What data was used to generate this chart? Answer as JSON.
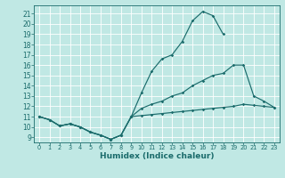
{
  "xlabel": "Humidex (Indice chaleur)",
  "xlim": [
    -0.5,
    23.5
  ],
  "ylim": [
    8.5,
    21.8
  ],
  "yticks": [
    9,
    10,
    11,
    12,
    13,
    14,
    15,
    16,
    17,
    18,
    19,
    20,
    21
  ],
  "xticks": [
    0,
    1,
    2,
    3,
    4,
    5,
    6,
    7,
    8,
    9,
    10,
    11,
    12,
    13,
    14,
    15,
    16,
    17,
    18,
    19,
    20,
    21,
    22,
    23
  ],
  "bg_color": "#c0e8e4",
  "grid_color": "#ffffff",
  "line_color": "#1a6b6b",
  "line1_x": [
    0,
    1,
    2,
    3,
    4,
    5,
    6,
    7,
    8,
    9,
    10,
    11,
    12,
    13,
    14,
    15,
    16,
    17,
    18
  ],
  "line1_y": [
    11.0,
    10.7,
    10.1,
    10.3,
    10.0,
    9.5,
    9.2,
    8.8,
    9.2,
    11.0,
    13.3,
    15.4,
    16.6,
    17.0,
    18.3,
    20.3,
    21.2,
    20.8,
    19.0
  ],
  "line2_x": [
    0,
    1,
    2,
    3,
    4,
    5,
    6,
    7,
    8,
    9,
    10,
    11,
    12,
    13,
    14,
    15,
    16,
    17,
    18,
    19,
    20,
    21,
    22,
    23
  ],
  "line2_y": [
    11.0,
    10.7,
    10.1,
    10.3,
    10.0,
    9.5,
    9.2,
    8.8,
    9.2,
    11.0,
    11.8,
    12.2,
    12.5,
    13.0,
    13.3,
    14.0,
    14.5,
    15.0,
    15.2,
    16.0,
    16.0,
    13.0,
    12.5,
    11.9
  ],
  "line3_x": [
    0,
    1,
    2,
    3,
    4,
    5,
    6,
    7,
    8,
    9,
    10,
    11,
    12,
    13,
    14,
    15,
    16,
    17,
    18,
    19,
    20,
    21,
    22,
    23
  ],
  "line3_y": [
    11.0,
    10.7,
    10.1,
    10.3,
    10.0,
    9.5,
    9.2,
    8.8,
    9.2,
    11.0,
    11.1,
    11.2,
    11.3,
    11.4,
    11.5,
    11.6,
    11.7,
    11.8,
    11.9,
    12.0,
    12.2,
    12.1,
    12.0,
    11.9
  ]
}
